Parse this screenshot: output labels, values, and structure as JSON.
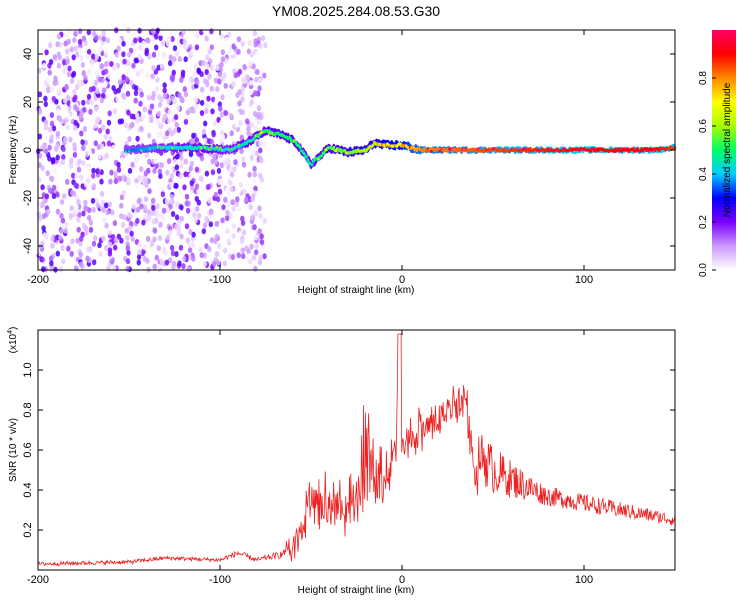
{
  "title": "YM08.2025.284.08.53.G30",
  "chart_data": [
    {
      "type": "heatmap",
      "xlabel": "Height of straight line (km)",
      "ylabel": "Frequency (Hz)",
      "xlim": [
        -200,
        150
      ],
      "ylim": [
        -50,
        50
      ],
      "xticks": [
        -200,
        -100,
        0,
        100
      ],
      "xtick_labels": [
        "-200",
        "-100",
        "0",
        "100"
      ],
      "yticks": [
        -40,
        -20,
        0,
        20,
        40
      ],
      "ytick_labels": [
        "-40",
        "-20",
        "0",
        "20",
        "40"
      ],
      "colorbar": {
        "label": "Normalized spectral amplitude",
        "range": [
          0,
          1
        ],
        "ticks": [
          "0.0",
          "0.2",
          "0.4",
          "0.6",
          "0.8"
        ],
        "colors": [
          "#ffffff",
          "#cc99ff",
          "#7a00ff",
          "#0000ff",
          "#00ccff",
          "#00ff66",
          "#aaff00",
          "#ffff00",
          "#ff8800",
          "#ff0000",
          "#ff0066"
        ]
      },
      "ridge": {
        "x": [
          -150,
          -130,
          -110,
          -95,
          -85,
          -75,
          -65,
          -58,
          -50,
          -40,
          -30,
          -20,
          -15,
          -10,
          0,
          10,
          50,
          100,
          140,
          150
        ],
        "freq": [
          0,
          1,
          1,
          0,
          3,
          8,
          6,
          3,
          -6,
          1,
          -1,
          0,
          3,
          2,
          2,
          0,
          0,
          0,
          0,
          1
        ],
        "amplitude": [
          0.35,
          0.4,
          0.45,
          0.4,
          0.45,
          0.5,
          0.5,
          0.5,
          0.45,
          0.55,
          0.55,
          0.6,
          0.6,
          0.65,
          0.7,
          0.8,
          0.85,
          0.9,
          0.9,
          0.85
        ]
      },
      "noise_x_range": [
        -200,
        -75
      ],
      "noise_amplitude": 0.25
    },
    {
      "type": "line",
      "xlabel": "Height of straight line (km)",
      "ylabel": "SNR (10 * v/v)",
      "y_scale_label": "(x10",
      "y_scale_exponent": "4",
      "xlim": [
        -200,
        150
      ],
      "ylim": [
        0,
        1.2
      ],
      "xticks": [
        -200,
        -100,
        0,
        100
      ],
      "xtick_labels": [
        "-200",
        "-100",
        "0",
        "100"
      ],
      "yticks": [
        0.2,
        0.4,
        0.6,
        0.8,
        1.0
      ],
      "ytick_labels": [
        "0.2",
        "0.4",
        "0.6",
        "0.8",
        "1.0"
      ],
      "color": "#ee2020",
      "envelope": {
        "x": [
          -200,
          -150,
          -130,
          -100,
          -90,
          -80,
          -65,
          -60,
          -55,
          -50,
          -45,
          -40,
          -35,
          -30,
          -25,
          -20,
          -15,
          -10,
          -5,
          -2,
          0,
          5,
          10,
          20,
          30,
          35,
          38,
          40,
          45,
          50,
          60,
          70,
          80,
          100,
          120,
          150
        ],
        "base": [
          0.02,
          0.03,
          0.05,
          0.04,
          0.07,
          0.04,
          0.06,
          0.12,
          0.2,
          0.32,
          0.3,
          0.28,
          0.27,
          0.28,
          0.35,
          0.38,
          0.45,
          0.42,
          0.5,
          0.6,
          0.62,
          0.66,
          0.7,
          0.78,
          0.85,
          0.88,
          0.62,
          0.5,
          0.42,
          0.38,
          0.36,
          0.34,
          0.32,
          0.29,
          0.26,
          0.22
        ],
        "peak": [
          0.04,
          0.05,
          0.07,
          0.06,
          0.1,
          0.06,
          0.1,
          0.25,
          0.4,
          0.65,
          0.55,
          0.6,
          0.55,
          0.6,
          0.8,
          0.92,
          0.85,
          0.8,
          0.78,
          1.18,
          0.78,
          0.82,
          0.85,
          0.9,
          0.95,
          0.96,
          0.92,
          0.65,
          0.7,
          0.62,
          0.55,
          0.48,
          0.42,
          0.38,
          0.34,
          0.28
        ]
      }
    }
  ]
}
